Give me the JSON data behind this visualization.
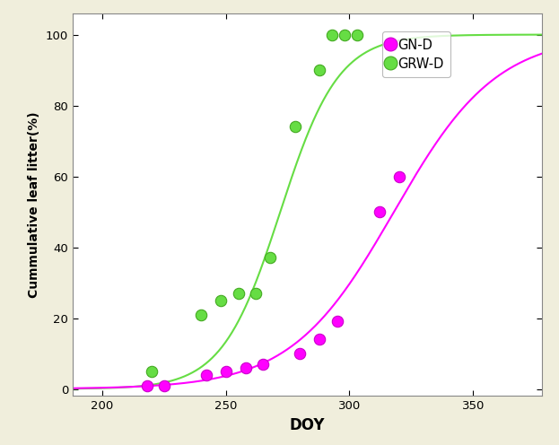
{
  "title": "",
  "xlabel": "DOY",
  "ylabel": "Cummulative leaf litter(%)",
  "xlim": [
    188,
    378
  ],
  "ylim": [
    -2,
    106
  ],
  "xticks": [
    200,
    250,
    300,
    350
  ],
  "yticks": [
    0,
    20,
    40,
    60,
    80,
    100
  ],
  "background_color": "#f0eedc",
  "plot_background": "#ffffff",
  "GN_D_points_x": [
    218,
    225,
    242,
    250,
    258,
    265,
    280,
    288,
    295,
    312,
    320
  ],
  "GN_D_points_y": [
    1,
    1,
    4,
    5,
    6,
    7,
    10,
    14,
    19,
    50,
    60
  ],
  "GRW_D_points_x": [
    220,
    240,
    248,
    255,
    262,
    268,
    278,
    288,
    293,
    298,
    303
  ],
  "GRW_D_points_y": [
    5,
    21,
    25,
    27,
    27,
    37,
    74,
    90,
    100,
    100,
    100
  ],
  "GN_D_color": "#ff00ff",
  "GRW_D_color": "#66dd44",
  "GN_D_curve_inflection": 318,
  "GN_D_curve_steepness": 0.048,
  "GRW_D_curve_inflection": 272,
  "GRW_D_curve_steepness": 0.085,
  "marker_size": 80,
  "line_width": 1.5,
  "border_color": "#888888"
}
